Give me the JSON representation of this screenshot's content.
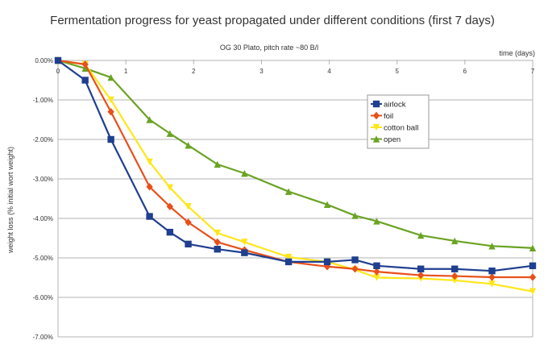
{
  "chart_data": {
    "type": "line",
    "title": "Fermentation progress for yeast propagated under different conditions (first 7 days)",
    "subtitle": "OG 30 Plato, pitch rate ~80 B/l",
    "xlabel": "time (days)",
    "ylabel": "weight loss (% initial wort weight)",
    "xlim": [
      0,
      7
    ],
    "ylim": [
      -7,
      0
    ],
    "x_ticks": [
      "0",
      "1",
      "2",
      "3",
      "4",
      "5",
      "6",
      "7"
    ],
    "y_ticks": [
      "0.00%",
      "-1.00%",
      "-2.00%",
      "-3.00%",
      "-4.00%",
      "-5.00%",
      "-6.00%",
      "-7.00%"
    ],
    "grid": "horizontal",
    "legend_position": "right-center",
    "series": [
      {
        "name": "airlock",
        "color": "#1f3f8f",
        "marker": "square",
        "x": [
          0,
          0.4,
          0.78,
          1.35,
          1.65,
          1.92,
          2.35,
          2.75,
          3.4,
          3.97,
          4.38,
          4.7,
          5.35,
          5.85,
          6.4,
          7
        ],
        "y": [
          0,
          -0.5,
          -2.0,
          -3.95,
          -4.35,
          -4.65,
          -4.78,
          -4.87,
          -5.1,
          -5.1,
          -5.05,
          -5.2,
          -5.28,
          -5.28,
          -5.33,
          -5.2
        ]
      },
      {
        "name": "foil",
        "color": "#e8501a",
        "marker": "diamond",
        "x": [
          0,
          0.4,
          0.78,
          1.35,
          1.65,
          1.92,
          2.35,
          2.75,
          3.4,
          3.97,
          4.38,
          4.7,
          5.35,
          5.85,
          6.4,
          7
        ],
        "y": [
          0,
          -0.1,
          -1.3,
          -3.2,
          -3.7,
          -4.1,
          -4.6,
          -4.8,
          -5.1,
          -5.22,
          -5.28,
          -5.35,
          -5.44,
          -5.46,
          -5.49,
          -5.49
        ]
      },
      {
        "name": "cotton ball",
        "color": "#ffe619",
        "marker": "triangle-down",
        "x": [
          0,
          0.4,
          0.78,
          1.35,
          1.65,
          1.92,
          2.35,
          2.75,
          3.4,
          3.97,
          4.38,
          4.7,
          5.35,
          5.85,
          6.4,
          7
        ],
        "y": [
          0,
          -0.1,
          -1.0,
          -2.57,
          -3.22,
          -3.7,
          -4.37,
          -4.6,
          -4.98,
          -5.1,
          -5.3,
          -5.5,
          -5.52,
          -5.57,
          -5.66,
          -5.85
        ]
      },
      {
        "name": "open",
        "color": "#6aa323",
        "marker": "triangle-up",
        "x": [
          0,
          0.4,
          0.78,
          1.35,
          1.65,
          1.92,
          2.35,
          2.75,
          3.4,
          3.97,
          4.38,
          4.7,
          5.35,
          5.85,
          6.4,
          7
        ],
        "y": [
          0,
          -0.2,
          -0.43,
          -1.5,
          -1.85,
          -2.15,
          -2.63,
          -2.86,
          -3.32,
          -3.65,
          -3.93,
          -4.07,
          -4.43,
          -4.57,
          -4.7,
          -4.75
        ]
      }
    ]
  }
}
